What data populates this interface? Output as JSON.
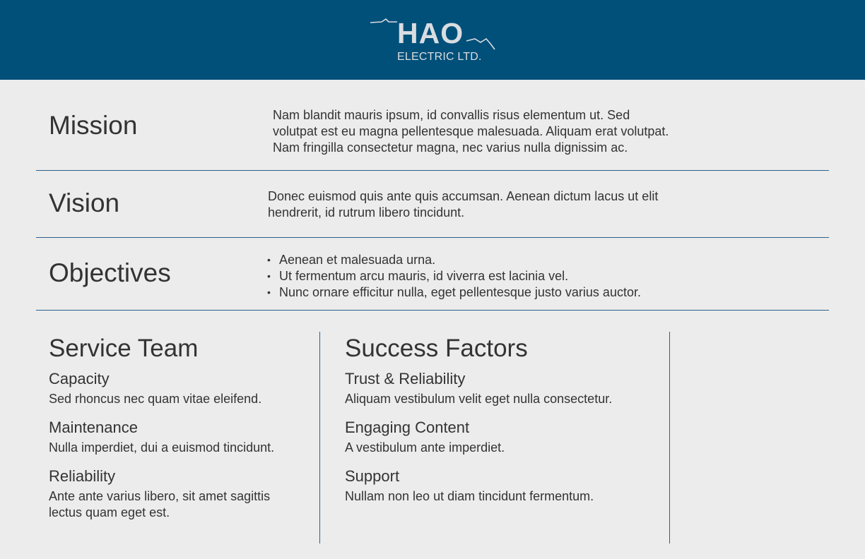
{
  "header": {
    "logo_main": "HAO",
    "logo_sub": "ELECTRIC LTD.",
    "background": "#00507a"
  },
  "mission": {
    "title": "Mission",
    "lines": [
      "Nam blandit mauris ipsum, id convallis risus elementum ut. Sed",
      "volutpat est eu magna pellentesque malesuada. Aliquam erat volutpat.",
      "Nam fringilla consectetur magna, nec varius nulla dignissim ac."
    ]
  },
  "vision": {
    "title": "Vision",
    "lines": [
      "Donec euismod quis ante quis accumsan. Aenean dictum lacus ut elit",
      "hendrerit, id rutrum libero tincidunt."
    ]
  },
  "objectives": {
    "title": "Objectives",
    "items": [
      "Aenean et malesuada urna.",
      "Ut fermentum arcu mauris, id viverra est lacinia vel.",
      "Nunc ornare efficitur nulla, eget pellentesque justo varius auctor."
    ]
  },
  "service_team": {
    "heading": "Service Team",
    "items": [
      {
        "title": "Capacity",
        "desc_lines": [
          "Sed rhoncus nec quam vitae eleifend."
        ]
      },
      {
        "title": "Maintenance",
        "desc_lines": [
          "Nulla imperdiet, dui a euismod tincidunt."
        ]
      },
      {
        "title": "Reliability",
        "desc_lines": [
          "Ante ante varius libero, sit amet sagittis",
          "lectus quam eget est."
        ]
      }
    ]
  },
  "success_factors": {
    "heading": "Success Factors",
    "items": [
      {
        "title": "Trust & Reliability",
        "desc_lines": [
          "Aliquam vestibulum velit eget nulla consectetur."
        ]
      },
      {
        "title": "Engaging Content",
        "desc_lines": [
          "A vestibulum ante imperdiet."
        ]
      },
      {
        "title": "Support",
        "desc_lines": [
          "Nullam non leo ut diam tincidunt fermentum."
        ]
      }
    ]
  },
  "colors": {
    "header_bg": "#00507a",
    "page_bg": "#ececec",
    "rule": "#2b5f8c",
    "text": "#333333",
    "logo": "#d9dde1"
  }
}
